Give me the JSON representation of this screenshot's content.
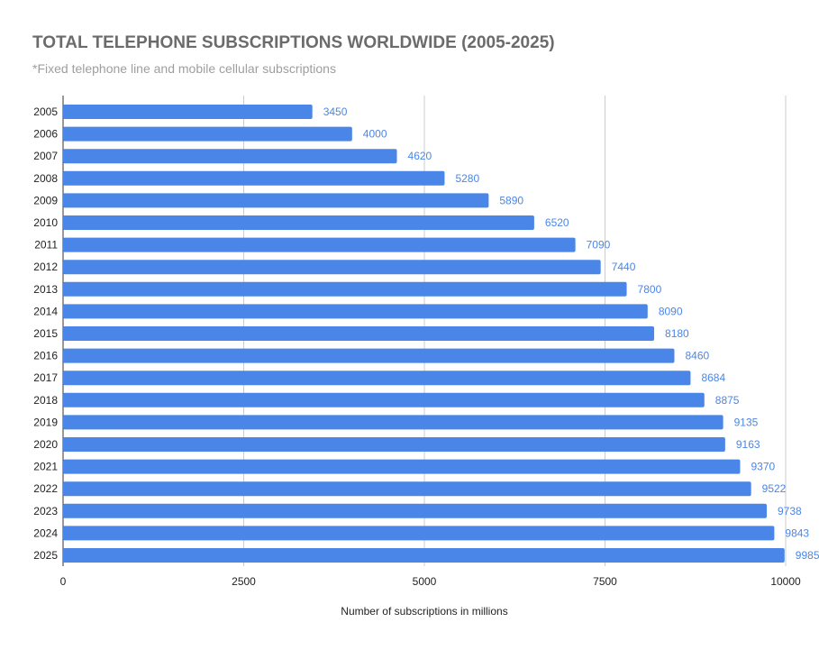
{
  "chart_data": {
    "type": "bar",
    "orientation": "horizontal",
    "title": "TOTAL TELEPHONE SUBSCRIPTIONS WORLDWIDE (2005-2025)",
    "subtitle": "*Fixed telephone line and mobile cellular subscriptions",
    "xlabel": "Number of subscriptions in millions",
    "ylabel": "",
    "xlim": [
      0,
      10000
    ],
    "xticks": [
      0,
      2500,
      5000,
      7500,
      10000
    ],
    "grid": true,
    "legend": "none",
    "bar_color": "#4a86e8",
    "categories": [
      "2005",
      "2006",
      "2007",
      "2008",
      "2009",
      "2010",
      "2011",
      "2012",
      "2013",
      "2014",
      "2015",
      "2016",
      "2017",
      "2018",
      "2019",
      "2020",
      "2021",
      "2022",
      "2023",
      "2024",
      "2025"
    ],
    "values": [
      3450,
      4000,
      4620,
      5280,
      5890,
      6520,
      7090,
      7440,
      7800,
      8090,
      8180,
      8460,
      8684,
      8875,
      9135,
      9163,
      9370,
      9522,
      9738,
      9843,
      9985
    ]
  }
}
